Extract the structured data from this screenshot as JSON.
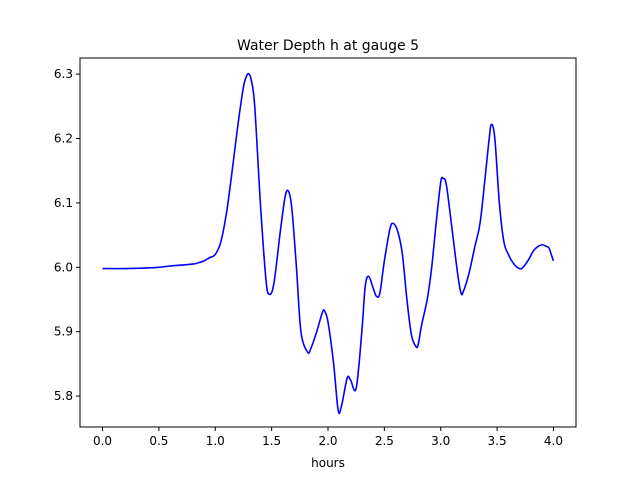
{
  "chart_data": {
    "type": "line",
    "title": "Water Depth h at gauge 5",
    "xlabel": "hours",
    "ylabel": "",
    "xlim": [
      -0.2,
      4.2
    ],
    "ylim": [
      5.752,
      6.325
    ],
    "xticks": [
      0.0,
      0.5,
      1.0,
      1.5,
      2.0,
      2.5,
      3.0,
      3.5,
      4.0
    ],
    "xtick_labels": [
      "0.0",
      "0.5",
      "1.0",
      "1.5",
      "2.0",
      "2.5",
      "3.0",
      "3.5",
      "4.0"
    ],
    "yticks": [
      5.8,
      5.9,
      6.0,
      6.1,
      6.2,
      6.3
    ],
    "ytick_labels": [
      "5.8",
      "5.9",
      "6.0",
      "6.1",
      "6.2",
      "6.3"
    ],
    "grid": false,
    "series": [
      {
        "color": "#0000ff",
        "x": [
          0.0,
          0.2,
          0.4,
          0.5,
          0.6,
          0.8,
          0.85,
          0.9,
          0.95,
          1.0,
          1.05,
          1.1,
          1.15,
          1.2,
          1.25,
          1.28,
          1.3,
          1.32,
          1.35,
          1.4,
          1.45,
          1.48,
          1.52,
          1.58,
          1.62,
          1.65,
          1.68,
          1.72,
          1.76,
          1.82,
          1.85,
          1.9,
          1.95,
          1.97,
          2.0,
          2.05,
          2.09,
          2.12,
          2.17,
          2.2,
          2.25,
          2.3,
          2.33,
          2.36,
          2.4,
          2.43,
          2.46,
          2.5,
          2.55,
          2.58,
          2.62,
          2.66,
          2.7,
          2.74,
          2.78,
          2.8,
          2.83,
          2.88,
          2.92,
          2.96,
          3.0,
          3.02,
          3.05,
          3.1,
          3.15,
          3.18,
          3.2,
          3.25,
          3.3,
          3.35,
          3.4,
          3.43,
          3.45,
          3.48,
          3.52,
          3.56,
          3.6,
          3.65,
          3.7,
          3.73,
          3.78,
          3.82,
          3.86,
          3.9,
          3.93,
          3.96,
          3.98,
          4.0
        ],
        "y": [
          5.998,
          5.998,
          5.999,
          6.0,
          6.002,
          6.005,
          6.007,
          6.01,
          6.015,
          6.02,
          6.04,
          6.085,
          6.15,
          6.22,
          6.28,
          6.298,
          6.3,
          6.29,
          6.25,
          6.1,
          5.98,
          5.958,
          5.975,
          6.06,
          6.11,
          6.118,
          6.09,
          6.0,
          5.9,
          5.868,
          5.875,
          5.9,
          5.93,
          5.932,
          5.915,
          5.85,
          5.778,
          5.785,
          5.828,
          5.825,
          5.812,
          5.9,
          5.97,
          5.986,
          5.968,
          5.955,
          5.96,
          6.01,
          6.06,
          6.068,
          6.055,
          6.02,
          5.95,
          5.895,
          5.877,
          5.88,
          5.91,
          5.95,
          6.0,
          6.07,
          6.132,
          6.138,
          6.128,
          6.06,
          5.99,
          5.96,
          5.962,
          5.99,
          6.03,
          6.07,
          6.15,
          6.2,
          6.222,
          6.2,
          6.1,
          6.04,
          6.02,
          6.005,
          5.998,
          6.0,
          6.012,
          6.025,
          6.032,
          6.035,
          6.033,
          6.03,
          6.02,
          6.01
        ]
      }
    ]
  }
}
